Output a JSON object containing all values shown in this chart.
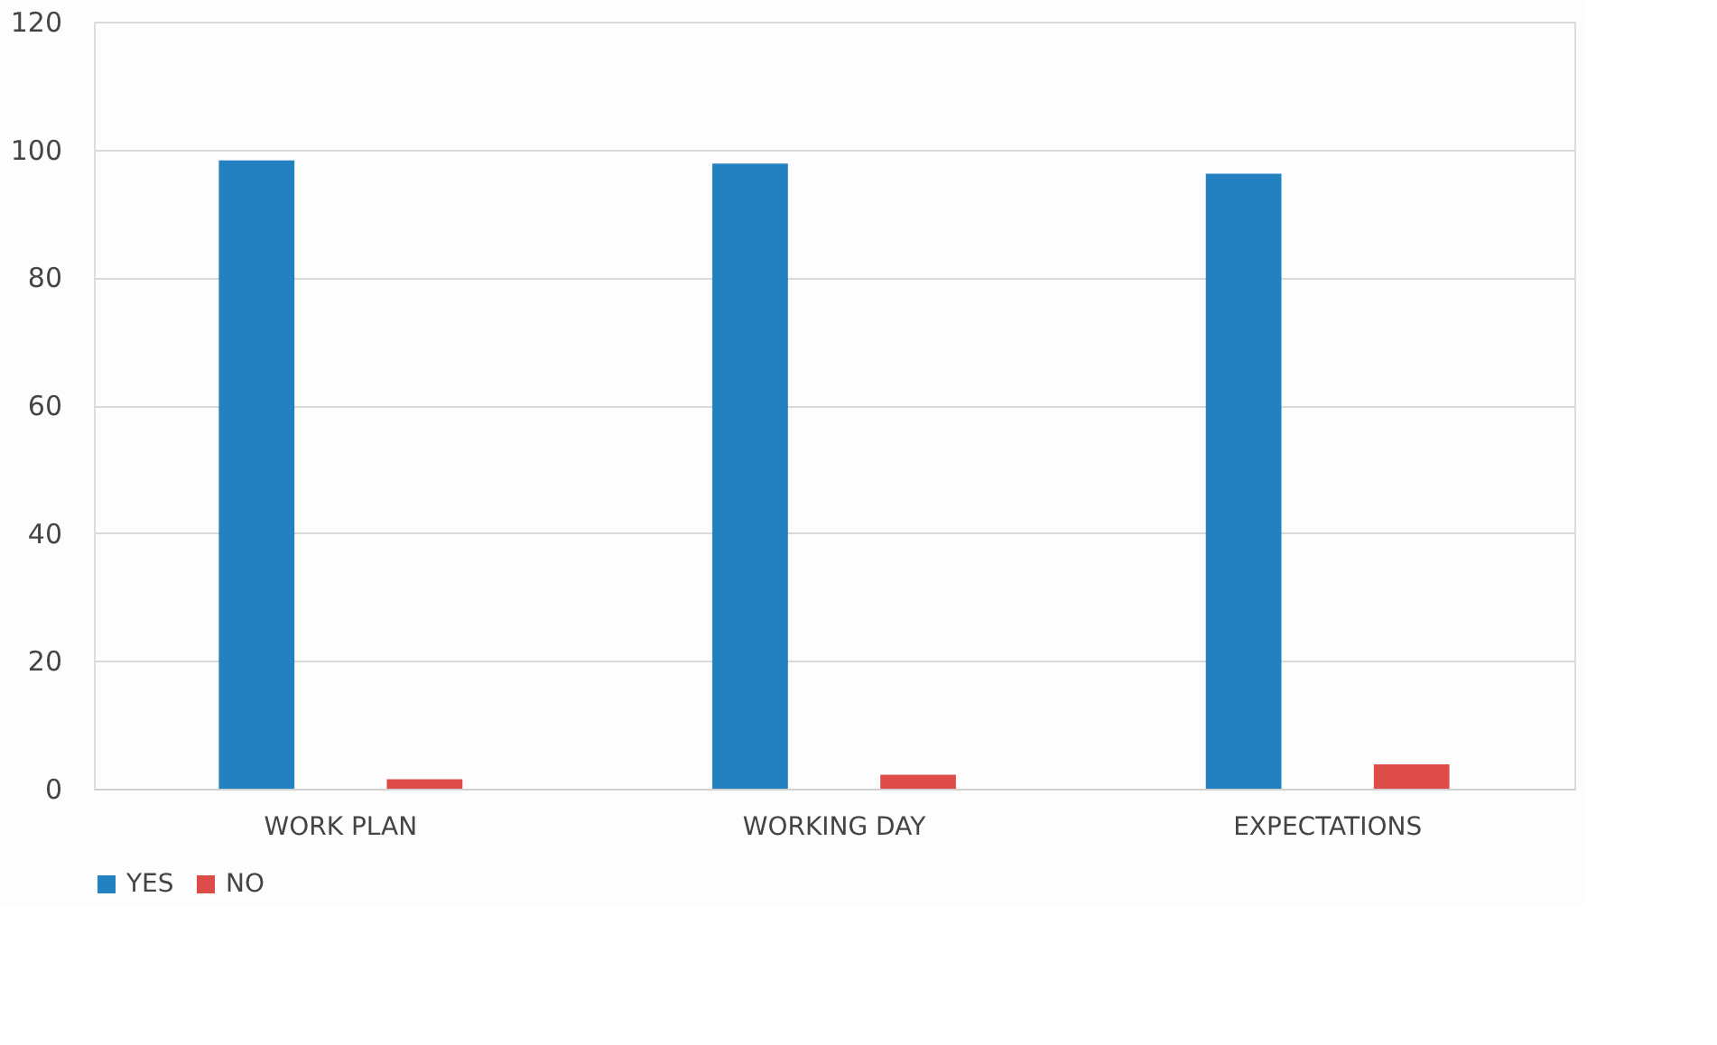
{
  "chart_data": {
    "type": "bar",
    "categories": [
      "WORK PLAN",
      "WORKING DAY",
      "EXPECTATIONS"
    ],
    "series": [
      {
        "name": "YES",
        "color": "#2481c1",
        "values": [
          98.3,
          97.8,
          96.2
        ]
      },
      {
        "name": "NO",
        "color": "#de4c4a",
        "values": [
          1.5,
          2.2,
          3.8
        ]
      }
    ],
    "ylim": [
      0,
      120
    ],
    "yticks": [
      0,
      20,
      40,
      60,
      80,
      100,
      120
    ],
    "grid": "y",
    "legend": "bottom"
  }
}
